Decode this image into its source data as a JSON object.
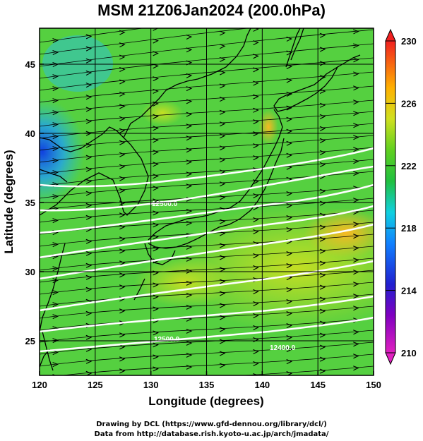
{
  "title": "MSM 21Z06Jan2024 (200.0hPa)",
  "x_axis": {
    "label": "Longitude (degrees)",
    "range": [
      120,
      150
    ],
    "ticks": [
      "120",
      "125",
      "130",
      "135",
      "140",
      "145",
      "150"
    ]
  },
  "y_axis": {
    "label": "Latitude  (degrees)",
    "range": [
      22.5,
      47.6
    ],
    "ticks": [
      "25",
      "30",
      "35",
      "40",
      "45"
    ]
  },
  "colorbar": {
    "min": 210,
    "max": 230,
    "ticks": [
      "210",
      "214",
      "218",
      "222",
      "226",
      "230"
    ]
  },
  "contour_labels": [
    "12500.0",
    "12500.0",
    "12400.0"
  ],
  "credits": {
    "line1": "Drawing by DCL (https://www.gfd-dennou.org/library/dcl/)",
    "line2": "Data from http://database.rish.kyoto-u.ac.jp/arch/jmadata/"
  },
  "colors": {
    "field_main": "#55d040",
    "warm": "#ffc020",
    "cool": "#2080ff",
    "contour": "#ffffff",
    "coast": "#000000"
  }
}
